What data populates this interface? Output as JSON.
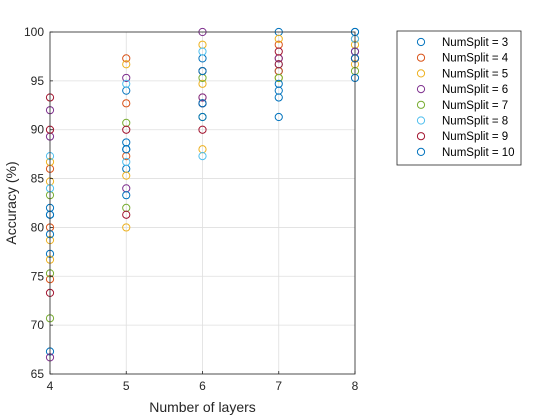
{
  "chart_data": {
    "type": "scatter",
    "title": "",
    "xlabel": "Number of layers",
    "ylabel": "Accuracy (%)",
    "xlim": [
      4,
      8
    ],
    "ylim": [
      65,
      100
    ],
    "xticks": [
      4,
      5,
      6,
      7,
      8
    ],
    "yticks": [
      65,
      70,
      75,
      80,
      85,
      90,
      95,
      100
    ],
    "grid": true,
    "marker": "open-circle",
    "legend_position": "outside-top-right",
    "series": [
      {
        "name": "NumSplit = 3",
        "color": "#0072BD",
        "points": [
          [
            4,
            67.3
          ],
          [
            4,
            77.3
          ],
          [
            4,
            81.3
          ],
          [
            4,
            82.0
          ],
          [
            5,
            86.0
          ],
          [
            5,
            88.0
          ],
          [
            5,
            88.7
          ],
          [
            5,
            94.0
          ],
          [
            6,
            92.7
          ],
          [
            6,
            96.0
          ],
          [
            6,
            97.3
          ],
          [
            7,
            94.0
          ],
          [
            7,
            96.0
          ],
          [
            7,
            100.0
          ],
          [
            8,
            98.0
          ],
          [
            8,
            100.0
          ]
        ]
      },
      {
        "name": "NumSplit = 4",
        "color": "#D95319",
        "points": [
          [
            4,
            74.7
          ],
          [
            4,
            80.0
          ],
          [
            4,
            86.0
          ],
          [
            5,
            87.3
          ],
          [
            5,
            92.7
          ],
          [
            5,
            97.3
          ],
          [
            6,
            93.3
          ],
          [
            6,
            96.0
          ],
          [
            7,
            96.0
          ],
          [
            7,
            97.3
          ],
          [
            7,
            98.7
          ],
          [
            8,
            97.3
          ],
          [
            8,
            99.3
          ]
        ]
      },
      {
        "name": "NumSplit = 5",
        "color": "#EDB120",
        "points": [
          [
            4,
            76.7
          ],
          [
            4,
            78.7
          ],
          [
            4,
            84.7
          ],
          [
            4,
            86.7
          ],
          [
            5,
            80.0
          ],
          [
            5,
            85.3
          ],
          [
            5,
            96.7
          ],
          [
            6,
            88.0
          ],
          [
            6,
            94.7
          ],
          [
            6,
            98.7
          ],
          [
            7,
            95.3
          ],
          [
            7,
            99.3
          ],
          [
            8,
            96.7
          ],
          [
            8,
            98.7
          ]
        ]
      },
      {
        "name": "NumSplit = 6",
        "color": "#7E2F8E",
        "points": [
          [
            4,
            66.7
          ],
          [
            4,
            89.3
          ],
          [
            4,
            92.0
          ],
          [
            5,
            84.0
          ],
          [
            5,
            95.3
          ],
          [
            6,
            93.3
          ],
          [
            6,
            100.0
          ],
          [
            7,
            97.3
          ],
          [
            8,
            98.0
          ]
        ]
      },
      {
        "name": "NumSplit = 7",
        "color": "#77AC30",
        "points": [
          [
            4,
            70.7
          ],
          [
            4,
            75.3
          ],
          [
            4,
            83.3
          ],
          [
            5,
            82.0
          ],
          [
            5,
            90.7
          ],
          [
            6,
            91.3
          ],
          [
            6,
            95.3
          ],
          [
            7,
            95.3
          ],
          [
            8,
            96.0
          ]
        ]
      },
      {
        "name": "NumSplit = 8",
        "color": "#4DBEEE",
        "points": [
          [
            4,
            84.0
          ],
          [
            4,
            87.3
          ],
          [
            5,
            86.7
          ],
          [
            5,
            94.7
          ],
          [
            6,
            87.3
          ],
          [
            6,
            98.0
          ],
          [
            7,
            96.7
          ],
          [
            8,
            99.3
          ]
        ]
      },
      {
        "name": "NumSplit = 9",
        "color": "#A2142F",
        "points": [
          [
            4,
            73.3
          ],
          [
            4,
            90.0
          ],
          [
            4,
            93.3
          ],
          [
            5,
            81.3
          ],
          [
            5,
            90.0
          ],
          [
            6,
            90.0
          ],
          [
            6,
            92.7
          ],
          [
            7,
            96.7
          ],
          [
            7,
            98.0
          ],
          [
            8,
            97.3
          ]
        ]
      },
      {
        "name": "NumSplit = 10",
        "color": "#0072BD",
        "points": [
          [
            4,
            79.3
          ],
          [
            4,
            81.3
          ],
          [
            5,
            83.3
          ],
          [
            5,
            88.0
          ],
          [
            6,
            91.3
          ],
          [
            6,
            92.7
          ],
          [
            6,
            96.0
          ],
          [
            7,
            91.3
          ],
          [
            7,
            93.3
          ],
          [
            7,
            94.7
          ],
          [
            8,
            95.3
          ],
          [
            8,
            97.3
          ],
          [
            8,
            100.0
          ]
        ]
      }
    ]
  }
}
